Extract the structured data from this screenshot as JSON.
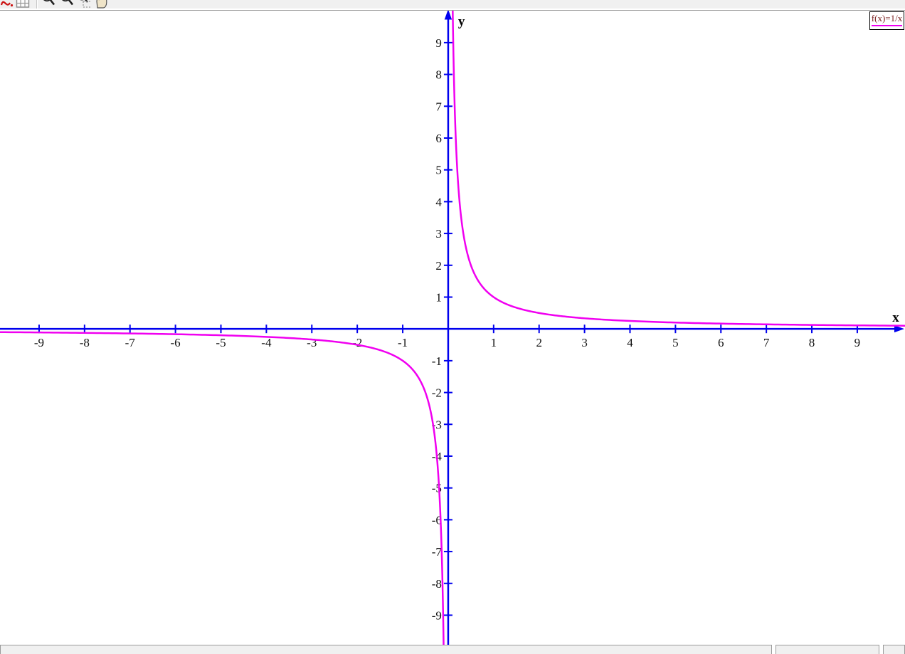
{
  "toolbar": {
    "icons": [
      {
        "name": "function-plot-icon"
      },
      {
        "name": "grid-icon"
      },
      {
        "name": "zoom-in-icon"
      },
      {
        "name": "zoom-out-icon"
      },
      {
        "name": "zoom-window-icon"
      },
      {
        "name": "pan-hand-icon"
      }
    ]
  },
  "legend": {
    "label": "f(x)=1/x",
    "text_color": "#7b2121",
    "line_color": "#f000f0",
    "position": "top-right"
  },
  "status_bar": {
    "panels": [
      "",
      "",
      ""
    ]
  },
  "chart_data": {
    "type": "line",
    "title": "",
    "xlabel": "x",
    "ylabel": "y",
    "xlim": [
      -9.86,
      10.05
    ],
    "ylim": [
      -10.22,
      10.34
    ],
    "x_ticks": [
      -9,
      -8,
      -7,
      -6,
      -5,
      -4,
      -3,
      -2,
      -1,
      1,
      2,
      3,
      4,
      5,
      6,
      7,
      8,
      9
    ],
    "y_ticks": [
      -9,
      -8,
      -7,
      -6,
      -5,
      -4,
      -3,
      -2,
      -1,
      1,
      2,
      3,
      4,
      5,
      6,
      7,
      8,
      9
    ],
    "grid": false,
    "legend_position": "top-right",
    "axis_color": "#0000ee",
    "tick_label_color": "#111111",
    "series": [
      {
        "name": "f(x)=1/x",
        "expression": "1/x",
        "function": "reciprocal",
        "color": "#f000f0",
        "stroke_width": 2.5,
        "sample_points": [
          [
            -9,
            -0.111
          ],
          [
            -5,
            -0.2
          ],
          [
            -2,
            -0.5
          ],
          [
            -1,
            -1
          ],
          [
            -0.5,
            -2
          ],
          [
            -0.2,
            -5
          ],
          [
            -0.1,
            -10
          ],
          [
            0.1,
            10
          ],
          [
            0.2,
            5
          ],
          [
            0.5,
            2
          ],
          [
            1,
            1
          ],
          [
            2,
            0.5
          ],
          [
            5,
            0.2
          ],
          [
            9,
            0.111
          ]
        ]
      }
    ]
  }
}
